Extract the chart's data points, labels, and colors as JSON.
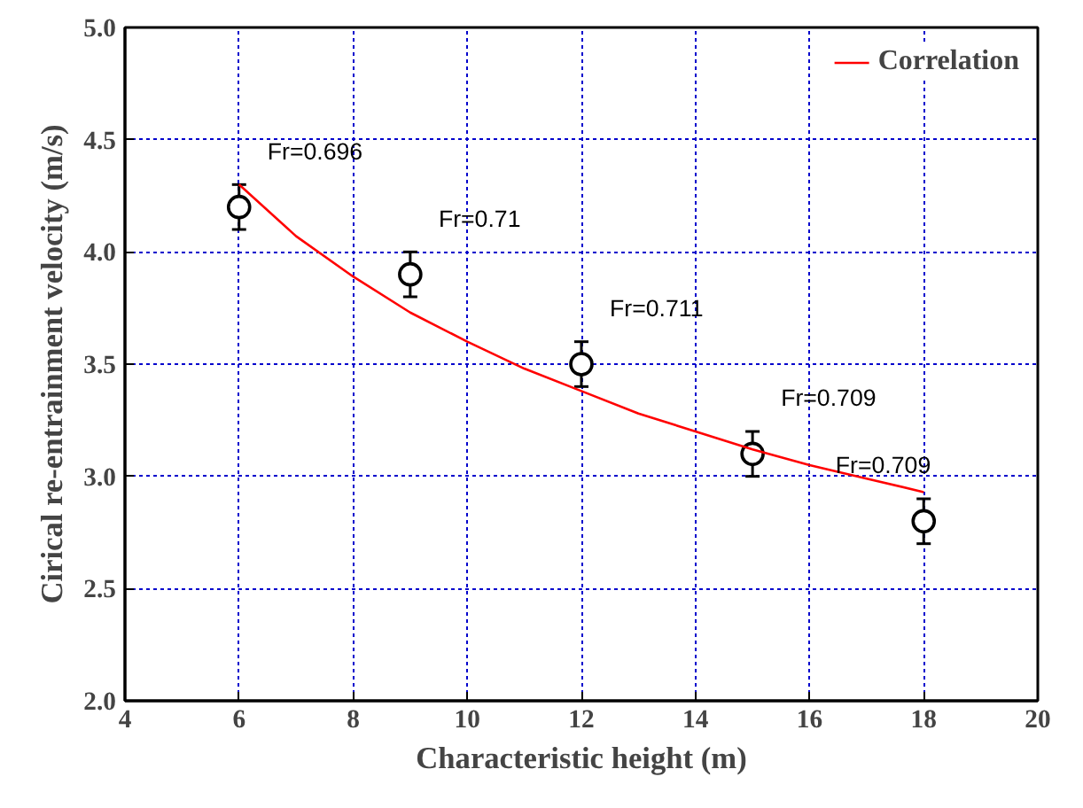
{
  "chart_data": {
    "type": "scatter",
    "xlabel": "Characteristic height (m)",
    "ylabel": "Cirical re-entrainment velocity (m/s)",
    "xlim": [
      4,
      20
    ],
    "xticks": [
      4,
      6,
      8,
      10,
      12,
      14,
      16,
      18,
      20
    ],
    "ylim": [
      2.0,
      5.0
    ],
    "yticks": [
      {
        "value": 2.0,
        "label": "2.0"
      },
      {
        "value": 2.5,
        "label": "2.5"
      },
      {
        "value": 3.0,
        "label": "3.0"
      },
      {
        "value": 3.5,
        "label": "3.5"
      },
      {
        "value": 4.0,
        "label": "4.0"
      },
      {
        "value": 4.5,
        "label": "4.5"
      },
      {
        "value": 5.0,
        "label": "5.0"
      }
    ],
    "grid": true,
    "legend": "top right",
    "series": [
      {
        "color": "#000000",
        "marker": "circle",
        "x": [
          6,
          9,
          12,
          15,
          18
        ],
        "values": [
          4.2,
          3.9,
          3.5,
          3.1,
          2.8
        ],
        "errors": [
          0.1,
          0.1,
          0.1,
          0.1,
          0.1
        ]
      },
      {
        "type": "line",
        "name": "Correlation",
        "color": "#ff0000",
        "line_style": "solid",
        "x": [
          6,
          7,
          8,
          9,
          10,
          11,
          12,
          13,
          14,
          15,
          16,
          17,
          18
        ],
        "values": [
          4.3,
          4.07,
          3.89,
          3.73,
          3.6,
          3.48,
          3.38,
          3.28,
          3.2,
          3.12,
          3.05,
          2.99,
          2.93
        ]
      }
    ],
    "annotations": [
      {
        "text": "Fr=0.696",
        "x": 6,
        "y": 4.2
      },
      {
        "text": "Fr=0.71",
        "x": 9,
        "y": 3.9
      },
      {
        "text": "Fr=0.711",
        "x": 12,
        "y": 3.5
      },
      {
        "text": "Fr=0.709",
        "x": 15,
        "y": 3.1
      },
      {
        "text": "Fr=0.709",
        "x": 18,
        "y": 2.8
      }
    ]
  }
}
